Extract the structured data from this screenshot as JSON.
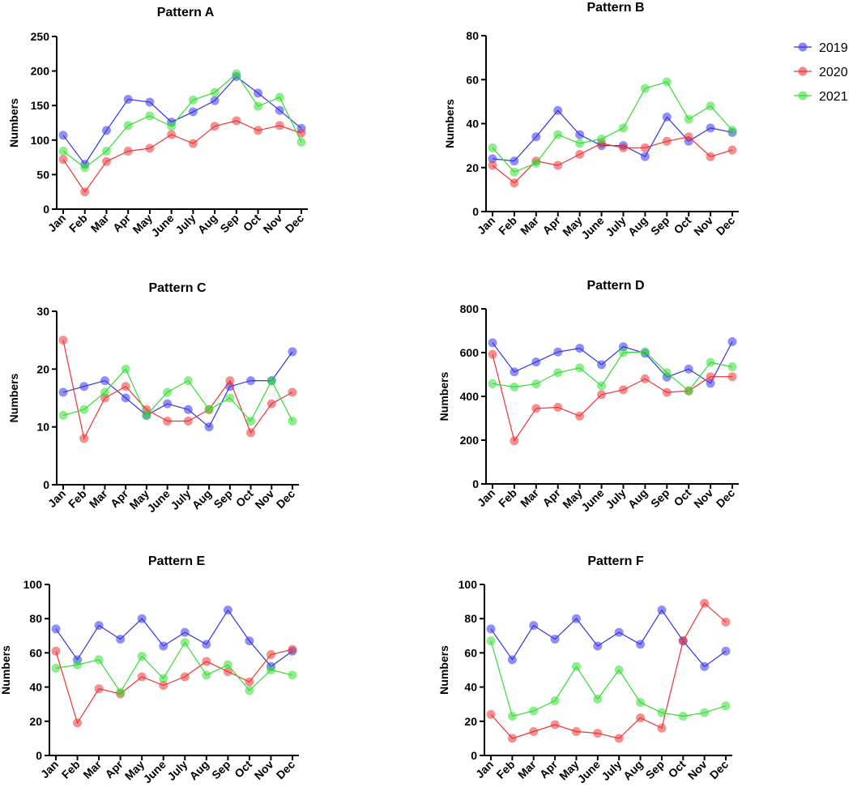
{
  "colors": {
    "2019": "#3333ee",
    "2020": "#ee3333",
    "2021": "#33dd33"
  },
  "legend": [
    {
      "name": "2019",
      "color": "#3333ee"
    },
    {
      "name": "2020",
      "color": "#ee3333"
    },
    {
      "name": "2021",
      "color": "#33dd33"
    }
  ],
  "chart_data": [
    {
      "type": "line",
      "title": "Pattern A",
      "ylabel": "Numbers",
      "categories": [
        "Jan",
        "Feb",
        "Mar",
        "Apr",
        "May",
        "June",
        "July",
        "Aug",
        "Sep",
        "Oct",
        "Nov",
        "Dec"
      ],
      "ylim": [
        0,
        250
      ],
      "yticks": [
        0,
        50,
        100,
        150,
        200,
        250
      ],
      "series": [
        {
          "name": "2019",
          "values": [
            107,
            65,
            114,
            159,
            155,
            126,
            141,
            157,
            192,
            168,
            143,
            117
          ]
        },
        {
          "name": "2020",
          "values": [
            72,
            25,
            69,
            84,
            88,
            108,
            95,
            120,
            128,
            114,
            121,
            110
          ]
        },
        {
          "name": "2021",
          "values": [
            84,
            60,
            84,
            121,
            135,
            120,
            158,
            169,
            196,
            149,
            162,
            97
          ]
        }
      ]
    },
    {
      "type": "line",
      "title": "Pattern B",
      "ylabel": "Numbers",
      "categories": [
        "Jan",
        "Feb",
        "Mar",
        "Apr",
        "May",
        "June",
        "July",
        "Aug",
        "Sep",
        "Oct",
        "Nov",
        "Dec"
      ],
      "ylim": [
        0,
        80
      ],
      "yticks": [
        0,
        20,
        40,
        60,
        80
      ],
      "series": [
        {
          "name": "2019",
          "values": [
            24,
            23,
            34,
            46,
            35,
            30,
            30,
            25,
            43,
            32,
            38,
            36
          ]
        },
        {
          "name": "2020",
          "values": [
            21,
            13,
            23,
            21,
            26,
            31,
            29,
            29,
            32,
            34,
            25,
            28
          ]
        },
        {
          "name": "2021",
          "values": [
            29,
            18,
            22,
            35,
            31,
            33,
            38,
            56,
            59,
            42,
            48,
            37
          ]
        }
      ]
    },
    {
      "type": "line",
      "title": "Pattern C",
      "ylabel": "Numbers",
      "categories": [
        "Jan",
        "Feb",
        "Mar",
        "Apr",
        "May",
        "June",
        "July",
        "Aug",
        "Sep",
        "Oct",
        "Nov",
        "Dec"
      ],
      "ylim": [
        0,
        30
      ],
      "yticks": [
        0,
        10,
        20,
        30
      ],
      "series": [
        {
          "name": "2019",
          "values": [
            16,
            17,
            18,
            15,
            12,
            14,
            13,
            10,
            17,
            18,
            18,
            23
          ]
        },
        {
          "name": "2020",
          "values": [
            25,
            8,
            15,
            17,
            13,
            11,
            11,
            13,
            18,
            9,
            14,
            16
          ]
        },
        {
          "name": "2021",
          "values": [
            12,
            13,
            16,
            20,
            12,
            16,
            18,
            13,
            15,
            11,
            18,
            11
          ]
        }
      ]
    },
    {
      "type": "line",
      "title": "Pattern D",
      "ylabel": "Numbers",
      "categories": [
        "Jan",
        "Feb",
        "Mar",
        "Apr",
        "May",
        "June",
        "July",
        "Aug",
        "Sep",
        "Oct",
        "Nov",
        "Dec"
      ],
      "ylim": [
        0,
        800
      ],
      "yticks": [
        0,
        200,
        400,
        600,
        800
      ],
      "series": [
        {
          "name": "2019",
          "values": [
            645,
            512,
            557,
            603,
            620,
            545,
            627,
            597,
            488,
            525,
            460,
            650
          ]
        },
        {
          "name": "2020",
          "values": [
            592,
            197,
            345,
            350,
            310,
            408,
            430,
            480,
            418,
            425,
            490,
            490
          ]
        },
        {
          "name": "2021",
          "values": [
            458,
            443,
            457,
            508,
            530,
            448,
            600,
            604,
            508,
            425,
            555,
            535
          ]
        }
      ]
    },
    {
      "type": "line",
      "title": "Pattern E",
      "ylabel": "Numbers",
      "categories": [
        "Jan",
        "Feb",
        "Mar",
        "Apr",
        "May",
        "June",
        "July",
        "Aug",
        "Sep",
        "Oct",
        "Nov",
        "Dec"
      ],
      "ylim": [
        0,
        100
      ],
      "yticks": [
        0,
        20,
        40,
        60,
        80,
        100
      ],
      "series": [
        {
          "name": "2019",
          "values": [
            74,
            56,
            76,
            68,
            80,
            64,
            72,
            65,
            85,
            67,
            52,
            61
          ]
        },
        {
          "name": "2020",
          "values": [
            61,
            19,
            39,
            36,
            46,
            41,
            46,
            55,
            49,
            43,
            59,
            62
          ]
        },
        {
          "name": "2021",
          "values": [
            51,
            53,
            56,
            37,
            58,
            45,
            66,
            47,
            53,
            38,
            50,
            47
          ]
        }
      ]
    },
    {
      "type": "line",
      "title": "Pattern F",
      "ylabel": "Numbers",
      "categories": [
        "Jan",
        "Feb",
        "Mar",
        "Apr",
        "May",
        "June",
        "July",
        "Aug",
        "Sep",
        "Oct",
        "Nov",
        "Dec"
      ],
      "ylim": [
        0,
        100
      ],
      "yticks": [
        0,
        20,
        40,
        60,
        80,
        100
      ],
      "series": [
        {
          "name": "2019",
          "values": [
            74,
            56,
            76,
            68,
            80,
            64,
            72,
            65,
            85,
            67,
            52,
            61
          ]
        },
        {
          "name": "2020",
          "values": [
            24,
            10,
            14,
            18,
            14,
            13,
            10,
            22,
            16,
            67,
            89,
            78
          ]
        },
        {
          "name": "2021",
          "values": [
            67,
            23,
            26,
            32,
            52,
            33,
            50,
            31,
            25,
            23,
            25,
            29
          ]
        }
      ]
    }
  ]
}
